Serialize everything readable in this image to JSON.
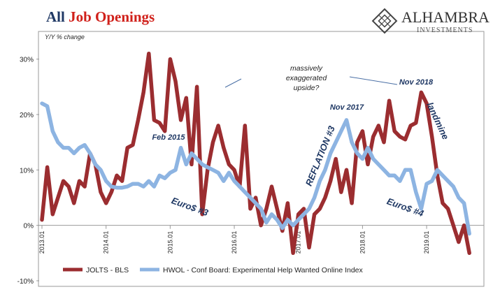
{
  "chart_data": {
    "type": "line",
    "title": [
      "All",
      "Job Openings"
    ],
    "logo": {
      "name": "ALHAMBRA",
      "subtitle": "INVESTMENTS"
    },
    "y_label": "Y/Y % change",
    "categories": [
      "2013.01",
      null,
      null,
      null,
      null,
      null,
      null,
      null,
      null,
      null,
      null,
      null,
      "2014.01",
      null,
      null,
      null,
      null,
      null,
      null,
      null,
      null,
      null,
      null,
      null,
      "2015.01",
      null,
      null,
      null,
      null,
      null,
      null,
      null,
      null,
      null,
      null,
      null,
      "2016.01",
      null,
      null,
      null,
      null,
      null,
      null,
      null,
      null,
      null,
      null,
      null,
      "2017.01",
      null,
      null,
      null,
      null,
      null,
      null,
      null,
      null,
      null,
      null,
      null,
      "2018.01",
      null,
      null,
      null,
      null,
      null,
      null,
      null,
      null,
      null,
      null,
      null,
      "2019.01",
      null,
      null,
      null,
      null,
      null,
      null,
      null,
      null
    ],
    "series": [
      {
        "name": "JOLTS - BLS",
        "color": "#9b2d30",
        "values": [
          1,
          10.5,
          2,
          5,
          8,
          7,
          4,
          8,
          7,
          13,
          11,
          6,
          4,
          6,
          9,
          8,
          14,
          14.5,
          19,
          24,
          31,
          19,
          18.5,
          17,
          30,
          26,
          19,
          23,
          11,
          25,
          2,
          10,
          15,
          18,
          14,
          11,
          10,
          7,
          18,
          3,
          5,
          0,
          3,
          7,
          3,
          -1,
          4,
          -5,
          2,
          3,
          -4,
          2,
          3,
          5,
          8,
          12,
          6,
          10,
          4,
          15,
          17,
          11,
          16,
          18,
          15,
          22.5,
          17,
          16,
          15.5,
          18,
          18.5,
          24,
          22,
          16,
          9,
          4,
          3,
          0,
          -3,
          0,
          -5
        ]
      },
      {
        "name": "HWOL - Conf Board: Experimental Help Wanted Online Index",
        "color": "#8db4e2",
        "values": [
          22,
          21.5,
          17,
          15,
          14,
          14,
          13,
          14,
          14.5,
          13,
          11,
          10,
          8,
          7,
          6.8,
          6.8,
          7,
          7.5,
          7.5,
          7,
          8,
          7,
          9,
          8.5,
          9.5,
          10,
          14,
          11,
          13,
          12,
          11,
          10.5,
          10,
          9.5,
          8,
          9.5,
          8,
          7,
          6,
          5,
          4,
          3,
          0.5,
          2,
          1,
          -0.5,
          1,
          0,
          1,
          2,
          3,
          5,
          8,
          10,
          13,
          15,
          17,
          19,
          15,
          13,
          12,
          14,
          12,
          11,
          10,
          9,
          9,
          8,
          10,
          10,
          6,
          3,
          7.5,
          8,
          10,
          9,
          8,
          7,
          5,
          4,
          -1.5
        ]
      }
    ],
    "ylim": [
      -10,
      35
    ],
    "yticks": [
      {
        "value": -10,
        "label": "-10%"
      },
      {
        "value": 0,
        "label": "0%"
      },
      {
        "value": 10,
        "label": "10%"
      },
      {
        "value": 20,
        "label": "20%"
      },
      {
        "value": 30,
        "label": "30%"
      }
    ],
    "annotations": [
      [
        "massively",
        "exaggerated",
        "upside?"
      ],
      [
        "Nov 2018"
      ],
      [
        "Nov 2017"
      ],
      [
        "Feb 2015"
      ],
      [
        "Euro$ #3"
      ],
      [
        "Euro$ #4"
      ],
      [
        "REFLATION #3"
      ],
      [
        "landmine"
      ]
    ]
  }
}
